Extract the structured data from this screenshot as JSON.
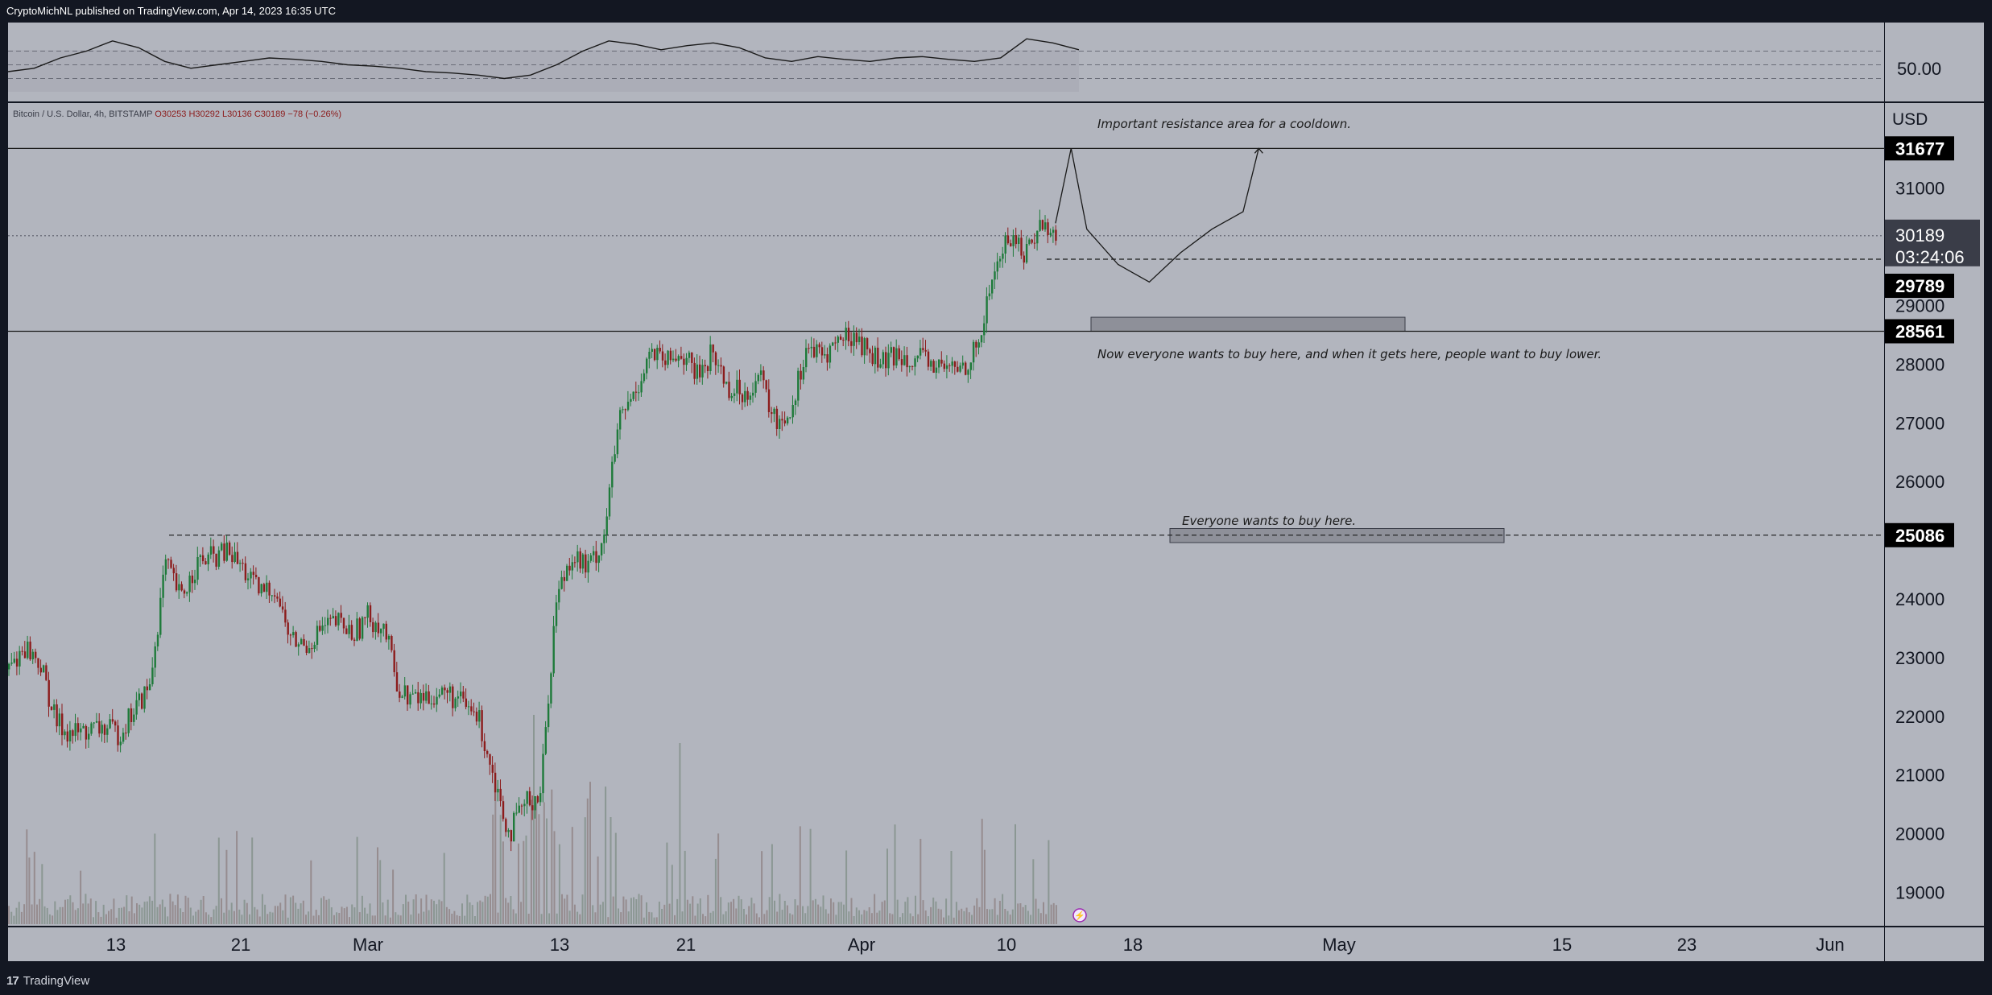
{
  "header": {
    "publisher": "CryptoMichNL published on TradingView.com, Apr 14, 2023 16:35 UTC"
  },
  "footer": {
    "brand": "TradingView",
    "logo_icon": "tradingview-logo-icon"
  },
  "colors": {
    "background": "#131722",
    "pane": "#b2b5be",
    "pane_dark": "#a6a9b2",
    "up_candle": "#1e7a3a",
    "down_candle": "#8c1c1c",
    "label_bg": "#000000",
    "current_bg": "#3a3d48"
  },
  "chart_data": {
    "type": "candlestick",
    "symbol_line": {
      "name": "Bitcoin / U.S. Dollar, 4h, BITSTAMP",
      "ohlc": "O30253 H30292 L30136 C30189 −78 (−0.26%)"
    },
    "currency": "USD",
    "ylim": [
      18600,
      32400
    ],
    "y_ticks": [
      19000,
      20000,
      21000,
      22000,
      23000,
      24000,
      25000,
      26000,
      27000,
      28000,
      29000,
      30000,
      31000
    ],
    "x_ticks": [
      "13",
      "21",
      "Mar",
      "13",
      "21",
      "Apr",
      "10",
      "18",
      "May",
      "15",
      "23",
      "Jun"
    ],
    "price_path": [
      [
        "2023-02-06",
        22800
      ],
      [
        "2023-02-07",
        23200
      ],
      [
        "2023-02-08",
        22900
      ],
      [
        "2023-02-09",
        21900
      ],
      [
        "2023-02-10",
        21700
      ],
      [
        "2023-02-12",
        21800
      ],
      [
        "2023-02-13",
        21700
      ],
      [
        "2023-02-14",
        22100
      ],
      [
        "2023-02-15",
        22500
      ],
      [
        "2023-02-16",
        24600
      ],
      [
        "2023-02-17",
        24000
      ],
      [
        "2023-02-18",
        24600
      ],
      [
        "2023-02-19",
        24700
      ],
      [
        "2023-02-20",
        24800
      ],
      [
        "2023-02-21",
        24500
      ],
      [
        "2023-02-22",
        24100
      ],
      [
        "2023-02-23",
        24200
      ],
      [
        "2023-02-24",
        23300
      ],
      [
        "2023-02-25",
        23200
      ],
      [
        "2023-02-26",
        23500
      ],
      [
        "2023-02-27",
        23600
      ],
      [
        "2023-02-28",
        23400
      ],
      [
        "2023-03-01",
        23700
      ],
      [
        "2023-03-02",
        23500
      ],
      [
        "2023-03-03",
        22400
      ],
      [
        "2023-03-04",
        22300
      ],
      [
        "2023-03-06",
        22400
      ],
      [
        "2023-03-08",
        22000
      ],
      [
        "2023-03-09",
        21000
      ],
      [
        "2023-03-10",
        20000
      ],
      [
        "2023-03-11",
        20500
      ],
      [
        "2023-03-12",
        20700
      ],
      [
        "2023-03-13",
        24000
      ],
      [
        "2023-03-14",
        24800
      ],
      [
        "2023-03-15",
        24500
      ],
      [
        "2023-03-16",
        25000
      ],
      [
        "2023-03-17",
        27000
      ],
      [
        "2023-03-18",
        27500
      ],
      [
        "2023-03-19",
        28200
      ],
      [
        "2023-03-20",
        28000
      ],
      [
        "2023-03-21",
        28200
      ],
      [
        "2023-03-22",
        27800
      ],
      [
        "2023-03-23",
        28200
      ],
      [
        "2023-03-24",
        27600
      ],
      [
        "2023-03-25",
        27500
      ],
      [
        "2023-03-26",
        27800
      ],
      [
        "2023-03-27",
        27000
      ],
      [
        "2023-03-28",
        27200
      ],
      [
        "2023-03-29",
        28300
      ],
      [
        "2023-03-30",
        28100
      ],
      [
        "2023-03-31",
        28400
      ],
      [
        "2023-04-01",
        28500
      ],
      [
        "2023-04-02",
        28200
      ],
      [
        "2023-04-03",
        28000
      ],
      [
        "2023-04-04",
        28200
      ],
      [
        "2023-04-05",
        28100
      ],
      [
        "2023-04-06",
        28000
      ],
      [
        "2023-04-07",
        27900
      ],
      [
        "2023-04-08",
        27950
      ],
      [
        "2023-04-09",
        28300
      ],
      [
        "2023-04-10",
        29600
      ],
      [
        "2023-04-11",
        30200
      ],
      [
        "2023-04-12",
        29900
      ],
      [
        "2023-04-13",
        30400
      ],
      [
        "2023-04-14",
        30189
      ]
    ],
    "volume_note": "volume bars along bottom of main pane",
    "price_labels": [
      {
        "value": "31677",
        "style": "black"
      },
      {
        "value": "30189",
        "style": "current",
        "countdown": "03:24:06"
      },
      {
        "value": "29789",
        "style": "black"
      },
      {
        "value": "28561",
        "style": "black"
      },
      {
        "value": "25086",
        "style": "black"
      }
    ],
    "horizontal_lines": [
      {
        "value": 31677,
        "style": "solid"
      },
      {
        "value": 30189,
        "style": "dotted"
      },
      {
        "value": 29789,
        "style": "dashed"
      },
      {
        "value": 28561,
        "style": "solid"
      },
      {
        "value": 25086,
        "style": "dashed"
      }
    ],
    "annotations": [
      "Important resistance area for a cooldown.",
      "Now everyone wants to buy here, and when it gets here, people want to buy lower.",
      "Everyone wants to buy here."
    ],
    "zones": [
      {
        "from": 28561,
        "to": 28800
      },
      {
        "from": 24960,
        "to": 25200
      }
    ],
    "projection_path": [
      [
        "2023-04-14",
        30400
      ],
      [
        "2023-04-15",
        31677
      ],
      [
        "2023-04-16",
        30300
      ],
      [
        "2023-04-18",
        29700
      ],
      [
        "2023-04-20",
        29400
      ],
      [
        "2023-04-22",
        29900
      ],
      [
        "2023-04-24",
        30300
      ],
      [
        "2023-04-26",
        30600
      ],
      [
        "2023-04-27",
        31677
      ]
    ],
    "oscillator": {
      "label": "50.00",
      "levels": [
        70,
        50,
        30
      ],
      "values": [
        40,
        45,
        60,
        70,
        85,
        75,
        55,
        45,
        50,
        55,
        60,
        58,
        55,
        50,
        48,
        45,
        40,
        38,
        35,
        30,
        35,
        50,
        70,
        85,
        80,
        72,
        78,
        82,
        75,
        60,
        55,
        62,
        58,
        55,
        60,
        62,
        58,
        55,
        60,
        88,
        82,
        72
      ]
    }
  }
}
